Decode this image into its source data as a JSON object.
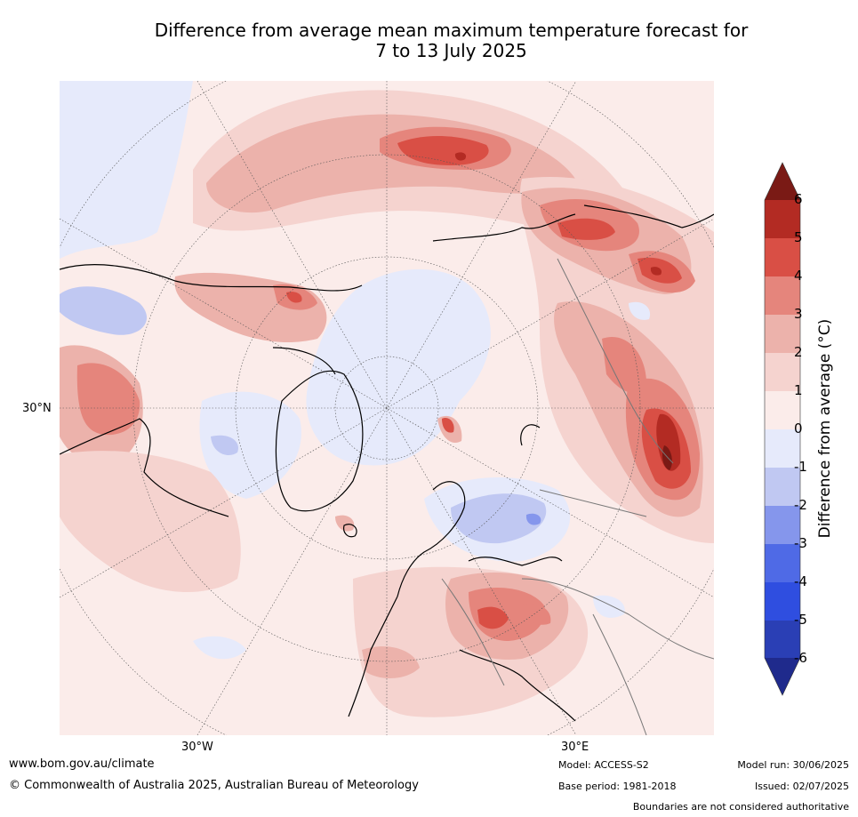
{
  "title": {
    "line1": "Difference from average mean maximum temperature forecast for",
    "line2": "7 to 13 July 2025"
  },
  "map": {
    "axis_labels": {
      "lat": "30°N",
      "lon_west": "30°W",
      "lon_east": "30°E"
    },
    "projection": "north polar stereographic",
    "colors": {
      "neg6": "#1f2a8c",
      "neg5": "#2a3fb5",
      "neg4": "#2f4ee0",
      "neg3": "#4f6ae6",
      "neg2": "#8596ec",
      "neg1": "#c0c8f2",
      "neg0": "#e6eafb",
      "pos0": "#fbecea",
      "pos1": "#f5d3cf",
      "pos2": "#ecb2ab",
      "pos3": "#e5857c",
      "pos4": "#d94f45",
      "pos5": "#b32b23",
      "pos6": "#7a1a15"
    }
  },
  "colorbar": {
    "label": "Difference from average (°C)",
    "ticks": [
      "6",
      "5",
      "4",
      "3",
      "2",
      "1",
      "0",
      "-1",
      "-2",
      "-3",
      "-4",
      "-5",
      "-6"
    ]
  },
  "footer": {
    "website": "www.bom.gov.au/climate",
    "copyright": "© Commonwealth of Australia 2025, Australian Bureau of Meteorology",
    "model": "Model: ACCESS-S2",
    "base_period": "Base period: 1981-2018",
    "model_run": "Model run: 30/06/2025",
    "issued": "Issued: 02/07/2025",
    "disclaimer": "Boundaries are not considered authoritative"
  }
}
